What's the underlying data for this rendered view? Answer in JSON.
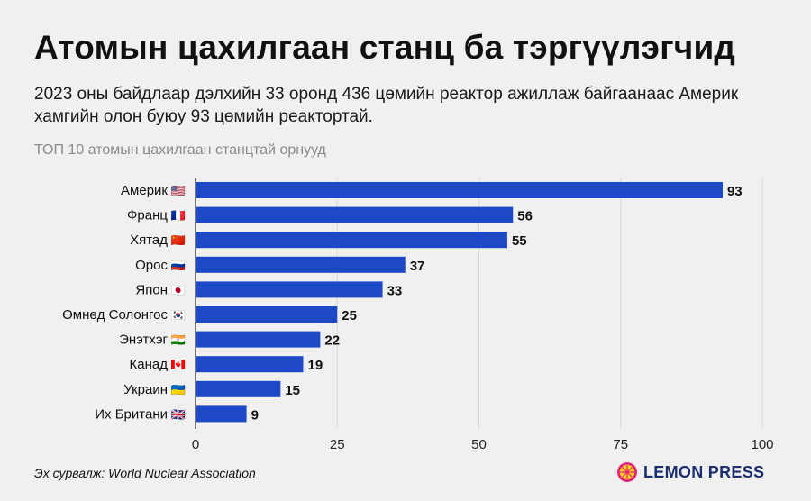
{
  "title": "Атомын цахилгаан станц ба тэргүүлэгчид",
  "subtitle": "2023 оны байдлаар дэлхийн 33 оронд 436 цөмийн реактор ажиллаж байгаанаас Америк хамгийн олон буюу 93 цөмийн реактортай.",
  "chart_label": "ТОП 10 атомын цахилгаан станцтай орнууд",
  "source": "Эх сурвалж: World Nuclear Association",
  "brand": "LEMON PRESS",
  "colors": {
    "bar": "#1d48c6",
    "grid": "#d9d9d9",
    "axis": "#222222",
    "background": "#f0f0f0"
  },
  "chart_data": {
    "type": "bar",
    "orientation": "horizontal",
    "title": "ТОП 10 атомын цахилгаан станцтай орнууд",
    "categories": [
      "Америк",
      "Франц",
      "Хятад",
      "Орос",
      "Япон",
      "Өмнөд Солонгос",
      "Энэтхэг",
      "Канад",
      "Украин",
      "Их Британи"
    ],
    "flags": [
      "🇺🇸",
      "🇫🇷",
      "🇨🇳",
      "🇷🇺",
      "🇯🇵",
      "🇰🇷",
      "🇮🇳",
      "🇨🇦",
      "🇺🇦",
      "🇬🇧"
    ],
    "values": [
      93,
      56,
      55,
      37,
      33,
      25,
      22,
      19,
      15,
      9
    ],
    "xlim": [
      0,
      100
    ],
    "xticks": [
      0,
      25,
      50,
      75,
      100
    ],
    "grid": true,
    "xlabel": "",
    "ylabel": ""
  }
}
